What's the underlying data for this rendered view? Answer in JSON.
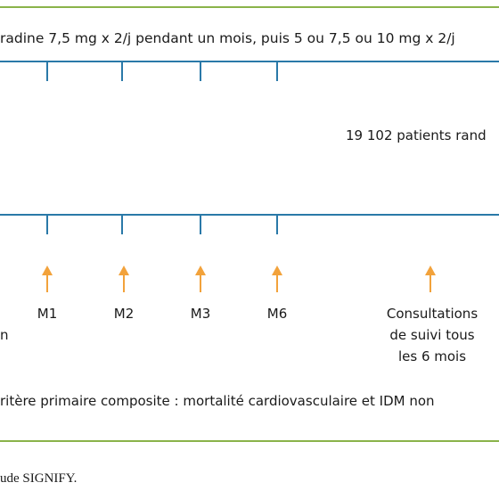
{
  "colors": {
    "frame": "#8ab34a",
    "line": "#2a79a8",
    "arrow": "#f2a23b",
    "text": "#1a1a1a"
  },
  "treatment_label": "radine 7,5 mg x 2/j pendant un mois, puis 5 ou 7,5 ou 10 mg x 2/j",
  "patients_label": "19 102 patients rand",
  "visits": [
    {
      "label": "M1"
    },
    {
      "label": "M2"
    },
    {
      "label": "M3"
    },
    {
      "label": "M6"
    }
  ],
  "followup": {
    "line1": "Consultations",
    "line2": "de suivi tous",
    "line3": "les 6 mois"
  },
  "left_fragment": "n",
  "primary_endpoint": "ritère primaire composite : mortalité cardiovasculaire et IDM non",
  "caption": "ude SIGNIFY."
}
